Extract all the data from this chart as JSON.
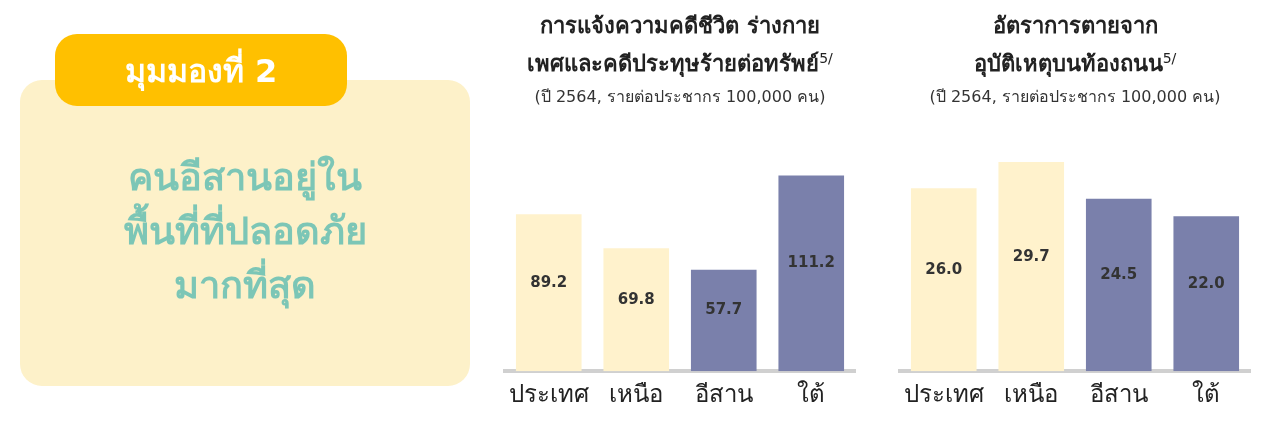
{
  "chart_data": [
    {
      "type": "other",
      "title": "มุมมองที่ 2",
      "annotations": [
        "คนอีสานอยู่ใน",
        "พื้นที่ที่ปลอดภัย",
        "มากที่สุด"
      ]
    },
    {
      "type": "bar",
      "title": "การแจ้งความคดีชีวิต ร่างกาย\nเพศและคดีประทุษร้ายต่อทรัพย์$^{5/}$",
      "subtitle": "(ปี 2564, รายต่อประชากร 100,000 คน)",
      "categories": [
        "ประเทศ",
        "เหนือ",
        "อีสาน",
        "ใต้"
      ],
      "values": [
        89.2,
        69.8,
        57.7,
        111.2
      ],
      "value_labels": [
        "89.2",
        "69.8",
        "57.7",
        "111.2"
      ],
      "colors": [
        "#fff2cc",
        "#fff2cc",
        "#7a80ab",
        "#7a80ab"
      ],
      "tick_labels": "x",
      "grid": false,
      "legend": false
    },
    {
      "type": "bar",
      "title": "อัตราการตายจาก\nอุบัติเหตุบนท้องถนน$^{5/}$",
      "subtitle": "(ปี 2564, รายต่อประชากร 100,000 คน)",
      "categories": [
        "ประเทศ",
        "เหนือ",
        "อีสาน",
        "ใต้"
      ],
      "values": [
        26.0,
        29.7,
        24.5,
        22.0
      ],
      "value_labels": [
        "26.0",
        "29.7",
        "24.5",
        "22.0"
      ],
      "colors": [
        "#fff2cc",
        "#fff2cc",
        "#7a80ab",
        "#7a80ab"
      ],
      "tick_labels": "x",
      "grid": false,
      "legend": false
    }
  ]
}
